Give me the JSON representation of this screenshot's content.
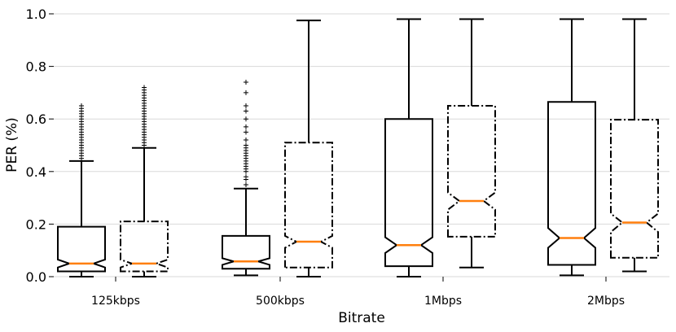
{
  "chart_data": {
    "type": "boxplot",
    "title": "",
    "xlabel": "Bitrate",
    "ylabel": "PER (%)",
    "ylim": [
      0.0,
      1.0
    ],
    "yticks": [
      "0.0",
      "0.2",
      "0.4",
      "0.6",
      "0.8",
      "1.0"
    ],
    "grid": "horizontal",
    "categories": [
      "125kbps",
      "500kbps",
      "1Mbps",
      "2Mbps"
    ],
    "series": [
      {
        "line_style": "solid",
        "notched": true,
        "boxes": [
          {
            "category": "125kbps",
            "whisker_low": 0.0,
            "q1": 0.02,
            "median": 0.05,
            "q3": 0.19,
            "whisker_high": 0.44,
            "notch_low": 0.035,
            "notch_high": 0.065,
            "outliers": [
              0.45,
              0.46,
              0.47,
              0.48,
              0.49,
              0.5,
              0.51,
              0.52,
              0.53,
              0.54,
              0.55,
              0.56,
              0.57,
              0.58,
              0.59,
              0.6,
              0.61,
              0.62,
              0.63,
              0.64,
              0.65
            ]
          },
          {
            "category": "500kbps",
            "whisker_low": 0.005,
            "q1": 0.03,
            "median": 0.058,
            "q3": 0.155,
            "whisker_high": 0.335,
            "notch_low": 0.045,
            "notch_high": 0.07,
            "outliers": [
              0.35,
              0.37,
              0.38,
              0.4,
              0.41,
              0.42,
              0.43,
              0.44,
              0.45,
              0.46,
              0.47,
              0.48,
              0.49,
              0.5,
              0.52,
              0.55,
              0.57,
              0.6,
              0.63,
              0.65,
              0.7,
              0.74
            ]
          },
          {
            "category": "1Mbps",
            "whisker_low": 0.0,
            "q1": 0.04,
            "median": 0.12,
            "q3": 0.6,
            "whisker_high": 0.98,
            "notch_low": 0.09,
            "notch_high": 0.15,
            "outliers": []
          },
          {
            "category": "2Mbps",
            "whisker_low": 0.005,
            "q1": 0.045,
            "median": 0.147,
            "q3": 0.665,
            "whisker_high": 0.98,
            "notch_low": 0.11,
            "notch_high": 0.185,
            "outliers": []
          }
        ]
      },
      {
        "line_style": "dashdot",
        "notched": true,
        "boxes": [
          {
            "category": "125kbps",
            "whisker_low": 0.0,
            "q1": 0.02,
            "median": 0.05,
            "q3": 0.21,
            "whisker_high": 0.49,
            "notch_low": 0.035,
            "notch_high": 0.065,
            "outliers": [
              0.5,
              0.51,
              0.52,
              0.53,
              0.54,
              0.55,
              0.56,
              0.57,
              0.58,
              0.59,
              0.6,
              0.61,
              0.62,
              0.63,
              0.64,
              0.65,
              0.66,
              0.67,
              0.68,
              0.69,
              0.7,
              0.71,
              0.72
            ]
          },
          {
            "category": "500kbps",
            "whisker_low": 0.0,
            "q1": 0.035,
            "median": 0.133,
            "q3": 0.51,
            "whisker_high": 0.975,
            "notch_low": 0.11,
            "notch_high": 0.155,
            "outliers": []
          },
          {
            "category": "1Mbps",
            "whisker_low": 0.035,
            "q1": 0.152,
            "median": 0.288,
            "q3": 0.65,
            "whisker_high": 0.98,
            "notch_low": 0.255,
            "notch_high": 0.32,
            "outliers": []
          },
          {
            "category": "2Mbps",
            "whisker_low": 0.02,
            "q1": 0.072,
            "median": 0.206,
            "q3": 0.597,
            "whisker_high": 0.98,
            "notch_low": 0.17,
            "notch_high": 0.24,
            "outliers": []
          }
        ]
      }
    ],
    "colors": {
      "box_line": "#000000",
      "median": "#ff7f0e",
      "grid": "#d9d9d9"
    }
  }
}
